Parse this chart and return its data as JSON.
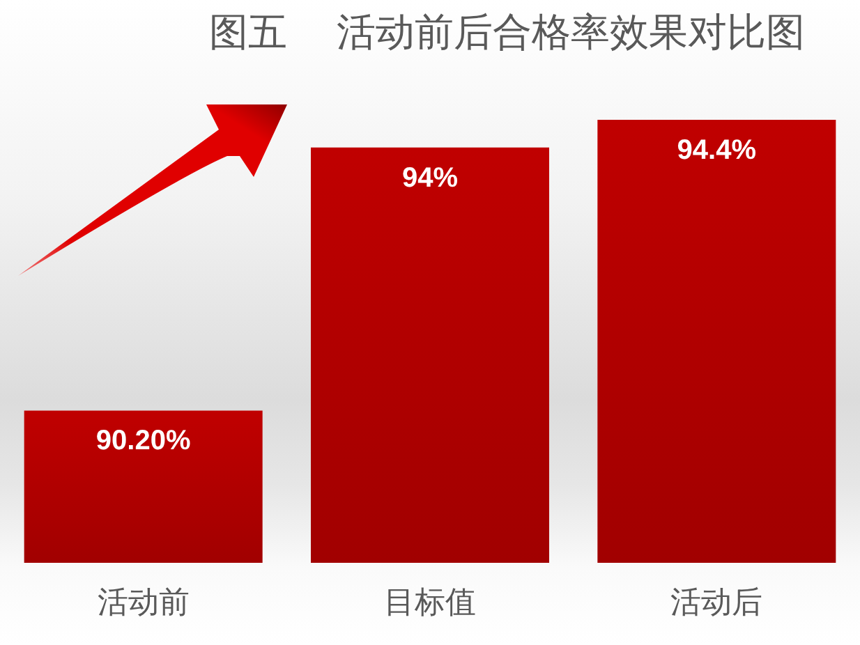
{
  "chart_data": {
    "type": "bar",
    "title": "图五    活动前后合格率效果对比图",
    "categories": [
      "活动前",
      "目标值",
      "活动后"
    ],
    "values": [
      90.2,
      94,
      94.4
    ],
    "value_labels": [
      "90.20%",
      "94%",
      "94.4%"
    ],
    "color": "#c00000",
    "ylim": [
      88,
      94.4
    ],
    "tick_labels": "x"
  }
}
